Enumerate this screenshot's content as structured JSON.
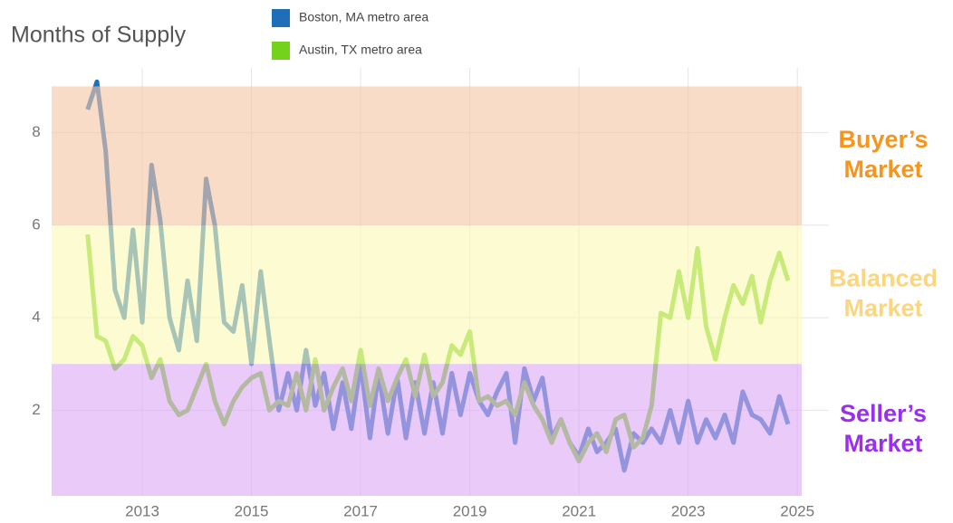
{
  "chart_data": {
    "type": "line",
    "title": "Months of Supply",
    "legend": "top",
    "grid": true,
    "xlim": [
      2011.34,
      2025.08
    ],
    "xticks": [
      2013,
      2015,
      2017,
      2019,
      2021,
      2023,
      2025
    ],
    "ylim": [
      0.15,
      9.4
    ],
    "yticks": [
      2,
      4,
      6,
      8
    ],
    "bands": [
      {
        "label": [
          "Buyer’s",
          "Market"
        ],
        "from": 6,
        "to": 9,
        "color": "#f3c7a6",
        "label_color": "#f7941d"
      },
      {
        "label": [
          "Balanced",
          "Market"
        ],
        "from": 3,
        "to": 6,
        "color": "#fcf9b4",
        "label_color": "#fbd67e"
      },
      {
        "label": [
          "Seller’s",
          "Market"
        ],
        "from": 0.15,
        "to": 3,
        "color": "#dcaaf6",
        "label_color": "#9a2ff0"
      }
    ],
    "x": [
      2012,
      2012.17,
      2012.33,
      2012.5,
      2012.67,
      2012.83,
      2013,
      2013.17,
      2013.33,
      2013.5,
      2013.67,
      2013.83,
      2014,
      2014.17,
      2014.33,
      2014.5,
      2014.67,
      2014.83,
      2015,
      2015.17,
      2015.33,
      2015.5,
      2015.67,
      2015.83,
      2016,
      2016.17,
      2016.33,
      2016.5,
      2016.67,
      2016.83,
      2017,
      2017.17,
      2017.33,
      2017.5,
      2017.67,
      2017.83,
      2018,
      2018.17,
      2018.33,
      2018.5,
      2018.67,
      2018.83,
      2019,
      2019.17,
      2019.33,
      2019.5,
      2019.67,
      2019.83,
      2020,
      2020.17,
      2020.33,
      2020.5,
      2020.67,
      2020.83,
      2021,
      2021.17,
      2021.33,
      2021.5,
      2021.67,
      2021.83,
      2022,
      2022.17,
      2022.33,
      2022.5,
      2022.67,
      2022.83,
      2023,
      2023.17,
      2023.33,
      2023.5,
      2023.67,
      2023.83,
      2024,
      2024.17,
      2024.33,
      2024.5,
      2024.67,
      2024.83
    ],
    "series": [
      {
        "name": "Boston, MA metro area",
        "color": "#1f6fb8",
        "values": [
          8.5,
          9.1,
          7.6,
          4.6,
          4.0,
          5.9,
          3.9,
          7.3,
          6.1,
          4.0,
          3.3,
          4.8,
          3.5,
          7.0,
          6.0,
          3.9,
          3.7,
          4.7,
          3.0,
          5.0,
          3.5,
          2.0,
          2.8,
          2.0,
          3.3,
          2.1,
          2.8,
          1.6,
          2.6,
          1.6,
          3.0,
          1.4,
          2.8,
          1.5,
          2.7,
          1.4,
          2.6,
          1.5,
          2.6,
          1.5,
          2.8,
          1.9,
          2.8,
          2.2,
          1.9,
          2.4,
          2.8,
          1.3,
          2.9,
          2.2,
          2.7,
          1.4,
          1.8,
          1.3,
          1.0,
          1.6,
          1.1,
          1.3,
          1.6,
          0.7,
          1.5,
          1.3,
          1.6,
          1.3,
          2.0,
          1.3,
          2.2,
          1.3,
          1.8,
          1.4,
          1.9,
          1.3,
          2.4,
          1.9,
          1.8,
          1.5,
          2.3,
          1.7
        ]
      },
      {
        "name": "Austin, TX metro area",
        "color": "#74d11c",
        "values": [
          5.8,
          3.6,
          3.5,
          2.9,
          3.1,
          3.6,
          3.4,
          2.7,
          3.1,
          2.2,
          1.9,
          2.0,
          2.5,
          3.0,
          2.2,
          1.7,
          2.2,
          2.5,
          2.7,
          2.8,
          2.0,
          2.2,
          2.1,
          2.8,
          2.0,
          3.1,
          2.0,
          2.5,
          2.9,
          2.2,
          3.3,
          2.1,
          2.9,
          2.2,
          2.7,
          3.1,
          2.3,
          3.2,
          2.3,
          2.6,
          3.4,
          3.2,
          3.7,
          2.2,
          2.3,
          2.1,
          2.2,
          1.9,
          2.6,
          2.1,
          1.8,
          1.3,
          1.8,
          1.3,
          0.9,
          1.3,
          1.5,
          1.1,
          1.8,
          1.9,
          1.2,
          1.4,
          2.1,
          4.1,
          4.0,
          5.0,
          4.0,
          5.5,
          3.8,
          3.1,
          4.0,
          4.7,
          4.3,
          4.9,
          3.9,
          4.8,
          5.4,
          4.8
        ]
      }
    ]
  }
}
